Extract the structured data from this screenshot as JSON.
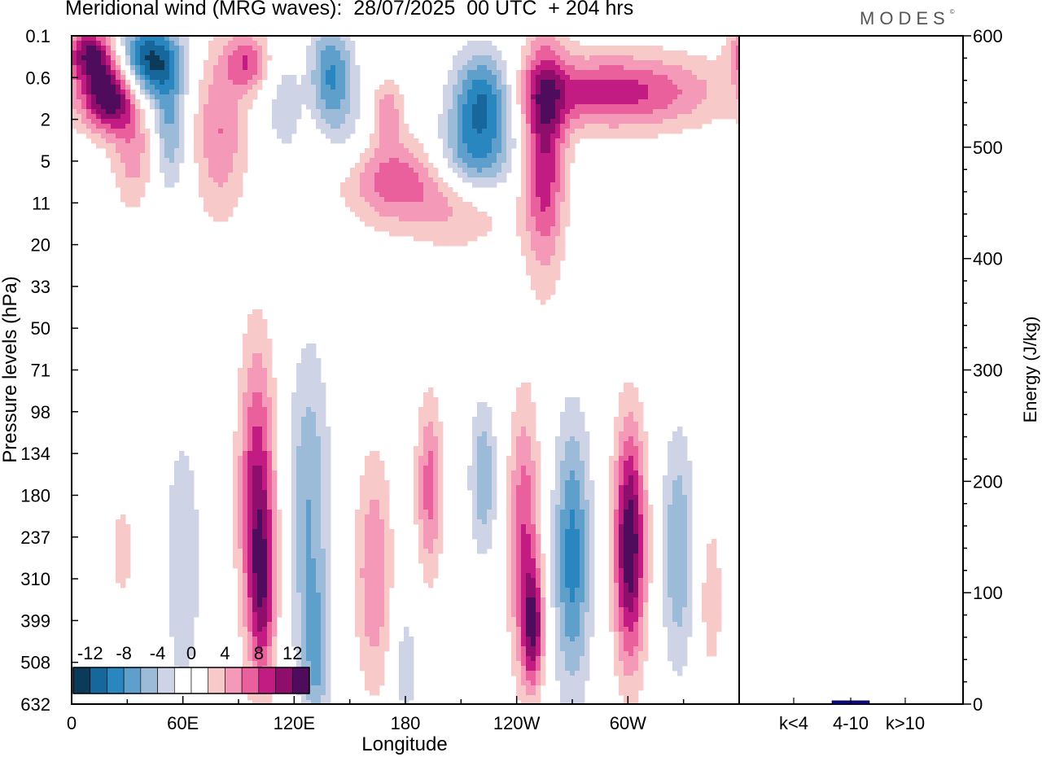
{
  "title": "Meridional wind (MRG waves):  28/07/2025  00 UTC  + 204 hrs",
  "logo": "MODES",
  "logo_mark": "©",
  "chart_data": [
    {
      "type": "heatmap",
      "title": "Meridional wind (MRG waves)",
      "xlabel": "Longitude",
      "ylabel": "Pressure levels (hPa)",
      "x_ticks": [
        "0",
        "60E",
        "120E",
        "180",
        "120W",
        "60W"
      ],
      "y_ticks": [
        "0.1",
        "0.6",
        "2",
        "5",
        "11",
        "20",
        "33",
        "50",
        "71",
        "98",
        "134",
        "180",
        "237",
        "310",
        "399",
        "508",
        "632"
      ],
      "colorbar": {
        "labels": [
          "-12",
          "-8",
          "-4",
          "0",
          "4",
          "8",
          "12"
        ],
        "colors": [
          "#0b3b58",
          "#16689c",
          "#2a86be",
          "#5f9fcb",
          "#9bbbd9",
          "#cfd3e6",
          "#ffffff",
          "#ffffff",
          "#f8c9c9",
          "#f49ab8",
          "#e9609c",
          "#c21c83",
          "#8f0e6c",
          "#4f0c5c"
        ]
      },
      "features": [
        {
          "lon": 20,
          "lev": 1.0,
          "dlon": 10,
          "dlev": 1.2,
          "v": 14
        },
        {
          "lon": 10,
          "lev": 0.2,
          "dlon": 9,
          "dlev": 0.9,
          "v": 11
        },
        {
          "lon": 42,
          "lev": 0.3,
          "dlon": 12,
          "dlev": 1.3,
          "v": -13
        },
        {
          "lon": 53,
          "lev": 2.5,
          "dlon": 6,
          "dlev": 2.0,
          "v": -6
        },
        {
          "lon": 33,
          "lev": 4.0,
          "dlon": 8,
          "dlev": 2.0,
          "v": 5
        },
        {
          "lon": 80,
          "lev": 2.5,
          "dlon": 10,
          "dlev": 3.0,
          "v": 6
        },
        {
          "lon": 95,
          "lev": 0.3,
          "dlon": 8,
          "dlev": 1.0,
          "v": 7
        },
        {
          "lon": 115,
          "lev": 1.5,
          "dlon": 6,
          "dlev": 1.5,
          "v": -4
        },
        {
          "lon": 140,
          "lev": 0.5,
          "dlon": 8,
          "dlev": 1.8,
          "v": -8
        },
        {
          "lon": 170,
          "lev": 7.0,
          "dlon": 22,
          "dlev": 1.5,
          "v": 7
        },
        {
          "lon": 150,
          "lev": 3.5,
          "dlon": 10,
          "dlev": 2.0,
          "v": -3
        },
        {
          "lon": 222,
          "lev": 1.0,
          "dlon": 12,
          "dlev": 1.5,
          "v": -11
        },
        {
          "lon": 217,
          "lev": 5.0,
          "dlon": 15,
          "dlev": 1.5,
          "v": -9
        },
        {
          "lon": 210,
          "lev": 11.0,
          "dlon": 20,
          "dlev": 1.5,
          "v": 5
        },
        {
          "lon": 255,
          "lev": 4.0,
          "dlon": 8,
          "dlev": 4.0,
          "v": 10
        },
        {
          "lon": 292,
          "lev": 0.9,
          "dlon": 40,
          "dlev": 1.3,
          "v": 9
        },
        {
          "lon": 170,
          "lev": 1.5,
          "dlon": 6,
          "dlev": 1.0,
          "v": 5
        },
        {
          "lon": 60,
          "lev": 280,
          "dlon": 7,
          "dlev": 4.5,
          "v": -4
        },
        {
          "lon": 100,
          "lev": 180,
          "dlon": 7,
          "dlev": 5.0,
          "v": 10
        },
        {
          "lon": 103,
          "lev": 350,
          "dlon": 5,
          "dlev": 3.0,
          "v": 7
        },
        {
          "lon": 128,
          "lev": 200,
          "dlon": 8,
          "dlev": 5.5,
          "v": -6
        },
        {
          "lon": 132,
          "lev": 500,
          "dlon": 5,
          "dlev": 2.5,
          "v": -5
        },
        {
          "lon": 163,
          "lev": 300,
          "dlon": 7,
          "dlev": 4.0,
          "v": 6
        },
        {
          "lon": 193,
          "lev": 170,
          "dlon": 5,
          "dlev": 3.0,
          "v": 7
        },
        {
          "lon": 222,
          "lev": 160,
          "dlon": 5,
          "dlev": 2.5,
          "v": -6
        },
        {
          "lon": 244,
          "lev": 240,
          "dlon": 6,
          "dlev": 4.5,
          "v": 8
        },
        {
          "lon": 249,
          "lev": 420,
          "dlon": 4,
          "dlev": 2.0,
          "v": 10
        },
        {
          "lon": 270,
          "lev": 270,
          "dlon": 7,
          "dlev": 4.5,
          "v": -9
        },
        {
          "lon": 301,
          "lev": 250,
          "dlon": 6,
          "dlev": 4.0,
          "v": 14
        },
        {
          "lon": 327,
          "lev": 260,
          "dlon": 6,
          "dlev": 4.0,
          "v": -6
        },
        {
          "lon": 345,
          "lev": 350,
          "dlon": 4,
          "dlev": 2.5,
          "v": 4
        },
        {
          "lon": 180,
          "lev": 520,
          "dlon": 5,
          "dlev": 2.5,
          "v": -3
        },
        {
          "lon": 27,
          "lev": 260,
          "dlon": 5,
          "dlev": 2.0,
          "v": 3
        }
      ]
    },
    {
      "type": "bar",
      "ylabel": "Energy (J/kg)",
      "ylim": [
        0,
        600
      ],
      "y_ticks": [
        0,
        100,
        200,
        300,
        400,
        500,
        600
      ],
      "categories": [
        "k<4",
        "4-10",
        "k>10"
      ],
      "values": [
        0,
        3,
        0
      ],
      "bar_color": "#0a0a8a"
    }
  ]
}
